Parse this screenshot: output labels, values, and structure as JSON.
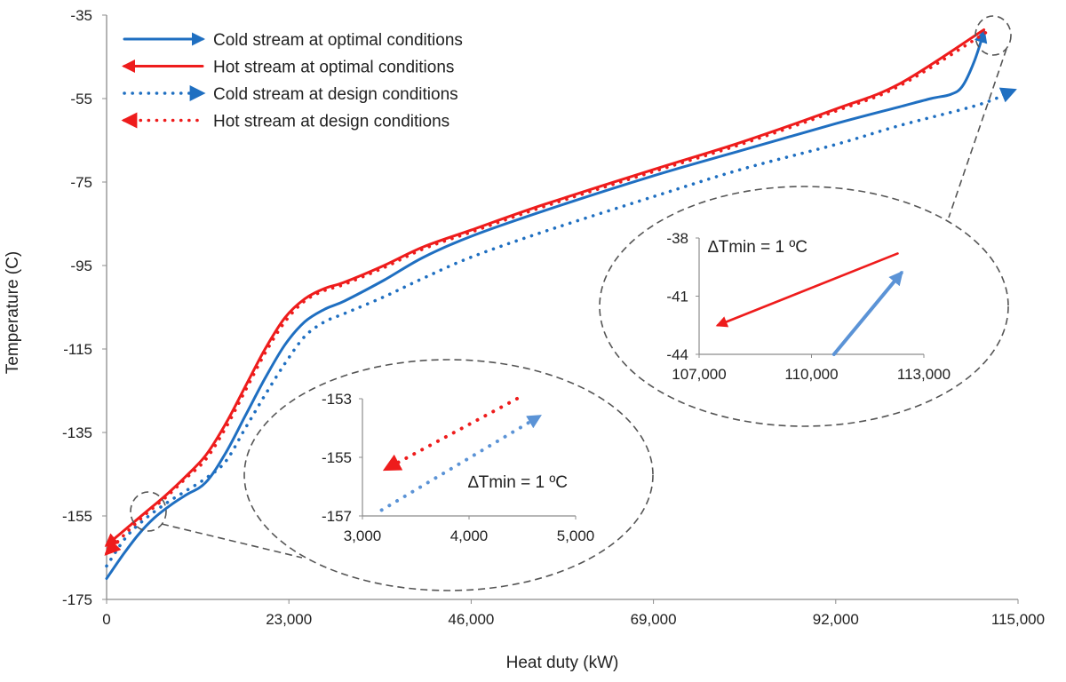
{
  "chart_data": {
    "type": "line",
    "xlabel": "Heat duty (kW)",
    "ylabel": "Temperature  (C)",
    "xlim": [
      0,
      115000
    ],
    "ylim": [
      -175,
      -35
    ],
    "xticks": [
      0,
      23000,
      46000,
      69000,
      92000,
      115000
    ],
    "xtick_labels": [
      "0",
      "23,000",
      "46,000",
      "69,000",
      "92,000",
      "115,000"
    ],
    "yticks": [
      -35,
      -55,
      -75,
      -95,
      -115,
      -135,
      -155,
      -175
    ],
    "ytick_labels": [
      "-35",
      "-55",
      "-75",
      "-95",
      "-115",
      "-135",
      "-155",
      "-175"
    ],
    "grid": false,
    "legend_position": "top-left",
    "colors": {
      "cold": "#1f6fc1",
      "hot": "#ee1c1c",
      "cold_inset": "#5b93d6"
    },
    "series": [
      {
        "name": "Cold stream at optimal conditions",
        "style": "solid",
        "color": "#1f6fc1",
        "direction": "forward",
        "x": [
          0,
          2000,
          4000,
          6000,
          8000,
          10000,
          12500,
          15000,
          17500,
          20000,
          22500,
          25000,
          27500,
          30000,
          35000,
          40000,
          46000,
          55000,
          69000,
          80000,
          92000,
          100000,
          104000,
          106500,
          108000,
          109500,
          110700
        ],
        "y": [
          -170,
          -164.5,
          -159.5,
          -155.5,
          -152.5,
          -150,
          -147,
          -140,
          -131,
          -122,
          -114,
          -108.5,
          -105.5,
          -103.5,
          -98.5,
          -93,
          -88,
          -82,
          -73.5,
          -67.5,
          -61,
          -57,
          -55,
          -54,
          -52,
          -46,
          -39
        ]
      },
      {
        "name": "Hot stream at optimal conditions",
        "style": "solid",
        "color": "#ee1c1c",
        "direction": "backward",
        "x": [
          0,
          2500,
          5000,
          7500,
          10000,
          12500,
          15000,
          17500,
          20000,
          22500,
          25000,
          27500,
          30000,
          35000,
          40000,
          46000,
          55000,
          69000,
          80000,
          92000,
          100000,
          110700
        ],
        "y": [
          -162,
          -158,
          -154,
          -150,
          -145.5,
          -140.5,
          -133,
          -124,
          -115,
          -107.5,
          -103,
          -100.5,
          -99,
          -95,
          -90.5,
          -86.5,
          -80.5,
          -72,
          -65.5,
          -57.5,
          -51.5,
          -38.5
        ]
      },
      {
        "name": "Cold stream at design conditions",
        "style": "dotted",
        "color": "#1f6fc1",
        "direction": "forward",
        "x": [
          0,
          2500,
          5000,
          7500,
          10000,
          12500,
          15000,
          17500,
          20000,
          22500,
          25000,
          27500,
          30000,
          35000,
          40000,
          46000,
          55000,
          69000,
          80000,
          92000,
          100000,
          110000,
          114500
        ],
        "y": [
          -167,
          -160,
          -155.5,
          -152,
          -149,
          -146,
          -142,
          -134,
          -126,
          -118.5,
          -112,
          -108.5,
          -106.5,
          -102.5,
          -98,
          -93,
          -87,
          -78.5,
          -72,
          -66,
          -61.5,
          -56.5,
          -53
        ]
      },
      {
        "name": "Hot stream at design conditions",
        "style": "dotted",
        "color": "#ee1c1c",
        "direction": "backward",
        "x": [
          0,
          2500,
          5000,
          7500,
          10000,
          12500,
          15000,
          17500,
          20000,
          22500,
          25000,
          27500,
          30000,
          35000,
          40000,
          46000,
          55000,
          69000,
          80000,
          92000,
          100000,
          111500
        ],
        "y": [
          -164,
          -159,
          -154.5,
          -150.5,
          -146,
          -141.5,
          -134,
          -125,
          -116,
          -108.5,
          -103.5,
          -101,
          -99.5,
          -95.5,
          -91,
          -87,
          -81,
          -72.5,
          -66,
          -58,
          -52,
          -38.5
        ]
      }
    ],
    "insets": [
      {
        "xlim": [
          107000,
          113000
        ],
        "ylim": [
          -44,
          -38
        ],
        "xticks": [
          107000,
          110000,
          113000
        ],
        "xtick_labels": [
          "107,000",
          "110,000",
          "113,000"
        ],
        "yticks": [
          -38,
          -41,
          -44
        ],
        "ytick_labels": [
          "-38",
          "-41",
          "-44"
        ],
        "annotation": "∆Tmin = 1 ºC",
        "lines": [
          {
            "series": "Hot stream at optimal conditions",
            "style": "solid",
            "color": "#ee1c1c",
            "x": [
              112300,
              107500
            ],
            "y": [
              -38.8,
              -42.5
            ]
          },
          {
            "series": "Cold stream at optimal conditions",
            "style": "solid",
            "color": "#5b93d6",
            "x": [
              110600,
              112400
            ],
            "y": [
              -44,
              -39.8
            ]
          }
        ]
      },
      {
        "xlim": [
          3000,
          5000
        ],
        "ylim": [
          -157,
          -153
        ],
        "xticks": [
          3000,
          4000,
          5000
        ],
        "xtick_labels": [
          "3,000",
          "4,000",
          "5,000"
        ],
        "yticks": [
          -153,
          -155,
          -157
        ],
        "ytick_labels": [
          "-153",
          "-155",
          "-157"
        ],
        "annotation": "∆Tmin = 1 ºC",
        "lines": [
          {
            "series": "Hot stream at design conditions",
            "style": "dotted",
            "color": "#ee1c1c",
            "x": [
              4450,
              3220
            ],
            "y": [
              -153,
              -155.4
            ]
          },
          {
            "series": "Cold stream at design conditions",
            "style": "dotted",
            "color": "#5b93d6",
            "x": [
              3180,
              4660
            ],
            "y": [
              -156.8,
              -153.6
            ]
          }
        ]
      }
    ]
  }
}
